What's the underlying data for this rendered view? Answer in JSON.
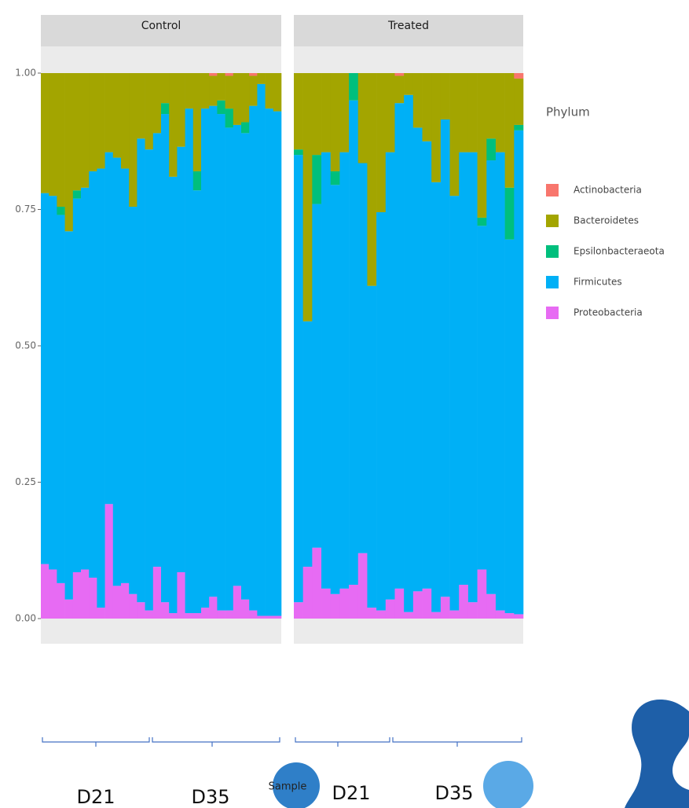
{
  "chart_data": {
    "type": "bar",
    "stacked": true,
    "legend_title": "Phylum",
    "ylim": [
      0,
      1
    ],
    "yticks": [
      {
        "value": 0,
        "label": "0.00"
      },
      {
        "value": 0.25,
        "label": "0.25"
      },
      {
        "value": 0.5,
        "label": "0.50"
      },
      {
        "value": 0.75,
        "label": "0.75"
      },
      {
        "value": 1,
        "label": "1.00"
      }
    ],
    "series": [
      {
        "name": "Actinobacteria",
        "color": "#F8766D"
      },
      {
        "name": "Bacteroidetes",
        "color": "#A3A500"
      },
      {
        "name": "Epsilonbacteraeota",
        "color": "#00BF7D"
      },
      {
        "name": "Firmicutes",
        "color": "#00B0F6"
      },
      {
        "name": "Proteobacteria",
        "color": "#E76BF3"
      }
    ],
    "facets": [
      {
        "title": "Control",
        "categories": [
          null,
          null,
          null,
          null,
          null,
          null,
          null,
          null,
          null,
          null,
          null,
          null,
          null,
          null,
          null,
          null,
          null,
          null,
          null,
          null,
          null,
          null,
          null,
          null,
          null,
          null,
          null,
          null,
          null,
          null
        ],
        "values": [
          [
            0,
            0,
            0,
            0,
            0,
            0,
            0,
            0,
            0,
            0,
            0,
            0,
            0,
            0,
            0,
            0,
            0,
            0,
            0,
            0,
            0,
            0.005,
            0,
            0.005,
            0,
            0,
            0.005,
            0,
            0,
            0
          ],
          [
            0.22,
            0.225,
            0.245,
            0.29,
            0.215,
            0.21,
            0.18,
            0.175,
            0.145,
            0.155,
            0.175,
            0.245,
            0.12,
            0.14,
            0.11,
            0.055,
            0.19,
            0.135,
            0.065,
            0.18,
            0.065,
            0.055,
            0.05,
            0.06,
            0.095,
            0.09,
            0.055,
            0.02,
            0.065,
            0.07
          ],
          [
            0,
            0,
            0.015,
            0,
            0.015,
            0,
            0,
            0,
            0,
            0,
            0,
            0,
            0,
            0,
            0,
            0.02,
            0,
            0,
            0,
            0.035,
            0,
            0,
            0.025,
            0.035,
            0,
            0.02,
            0,
            0,
            0,
            0
          ],
          [
            0.68,
            0.685,
            0.675,
            0.675,
            0.685,
            0.7,
            0.745,
            0.805,
            0.645,
            0.785,
            0.76,
            0.71,
            0.85,
            0.845,
            0.795,
            0.895,
            0.8,
            0.78,
            0.925,
            0.775,
            0.915,
            0.9,
            0.91,
            0.885,
            0.845,
            0.855,
            0.925,
            0.975,
            0.93,
            0.925
          ],
          [
            0.1,
            0.09,
            0.065,
            0.035,
            0.085,
            0.09,
            0.075,
            0.02,
            0.21,
            0.06,
            0.065,
            0.045,
            0.03,
            0.015,
            0.095,
            0.03,
            0.01,
            0.085,
            0.01,
            0.01,
            0.02,
            0.04,
            0.015,
            0.015,
            0.06,
            0.035,
            0.015,
            0.005,
            0.005,
            0.005
          ]
        ]
      },
      {
        "title": "Treated",
        "categories": [
          null,
          null,
          null,
          null,
          null,
          null,
          null,
          null,
          null,
          null,
          null,
          null,
          null,
          null,
          null,
          null,
          null,
          null,
          null,
          null,
          null,
          null,
          null,
          null,
          null
        ],
        "values": [
          [
            0,
            0,
            0,
            0,
            0,
            0,
            0,
            0,
            0,
            0,
            0,
            0.005,
            0,
            0,
            0,
            0,
            0,
            0,
            0,
            0,
            0,
            0,
            0,
            0,
            0.01
          ],
          [
            0.14,
            0.455,
            0.15,
            0.145,
            0.18,
            0.145,
            0,
            0.165,
            0.39,
            0.255,
            0.145,
            0.05,
            0.04,
            0.1,
            0.125,
            0.2,
            0.085,
            0.225,
            0.145,
            0.145,
            0.265,
            0.12,
            0.145,
            0.21,
            0.085
          ],
          [
            0.01,
            0,
            0.09,
            0,
            0.025,
            0,
            0.05,
            0,
            0,
            0,
            0,
            0,
            0,
            0,
            0,
            0,
            0,
            0,
            0,
            0,
            0.015,
            0.04,
            0,
            0.095,
            0.01
          ],
          [
            0.82,
            0.45,
            0.63,
            0.8,
            0.75,
            0.8,
            0.888,
            0.715,
            0.59,
            0.73,
            0.82,
            0.89,
            0.948,
            0.85,
            0.82,
            0.788,
            0.875,
            0.76,
            0.793,
            0.825,
            0.63,
            0.795,
            0.84,
            0.685,
            0.887
          ],
          [
            0.03,
            0.095,
            0.13,
            0.055,
            0.045,
            0.055,
            0.062,
            0.12,
            0.02,
            0.015,
            0.035,
            0.055,
            0.012,
            0.05,
            0.055,
            0.012,
            0.04,
            0.015,
            0.062,
            0.03,
            0.09,
            0.045,
            0.015,
            0.01,
            0.008
          ]
        ]
      }
    ],
    "annotations": {
      "groups": [
        "D21",
        "D35",
        "D21",
        "D35"
      ],
      "sample": "Sample"
    }
  }
}
